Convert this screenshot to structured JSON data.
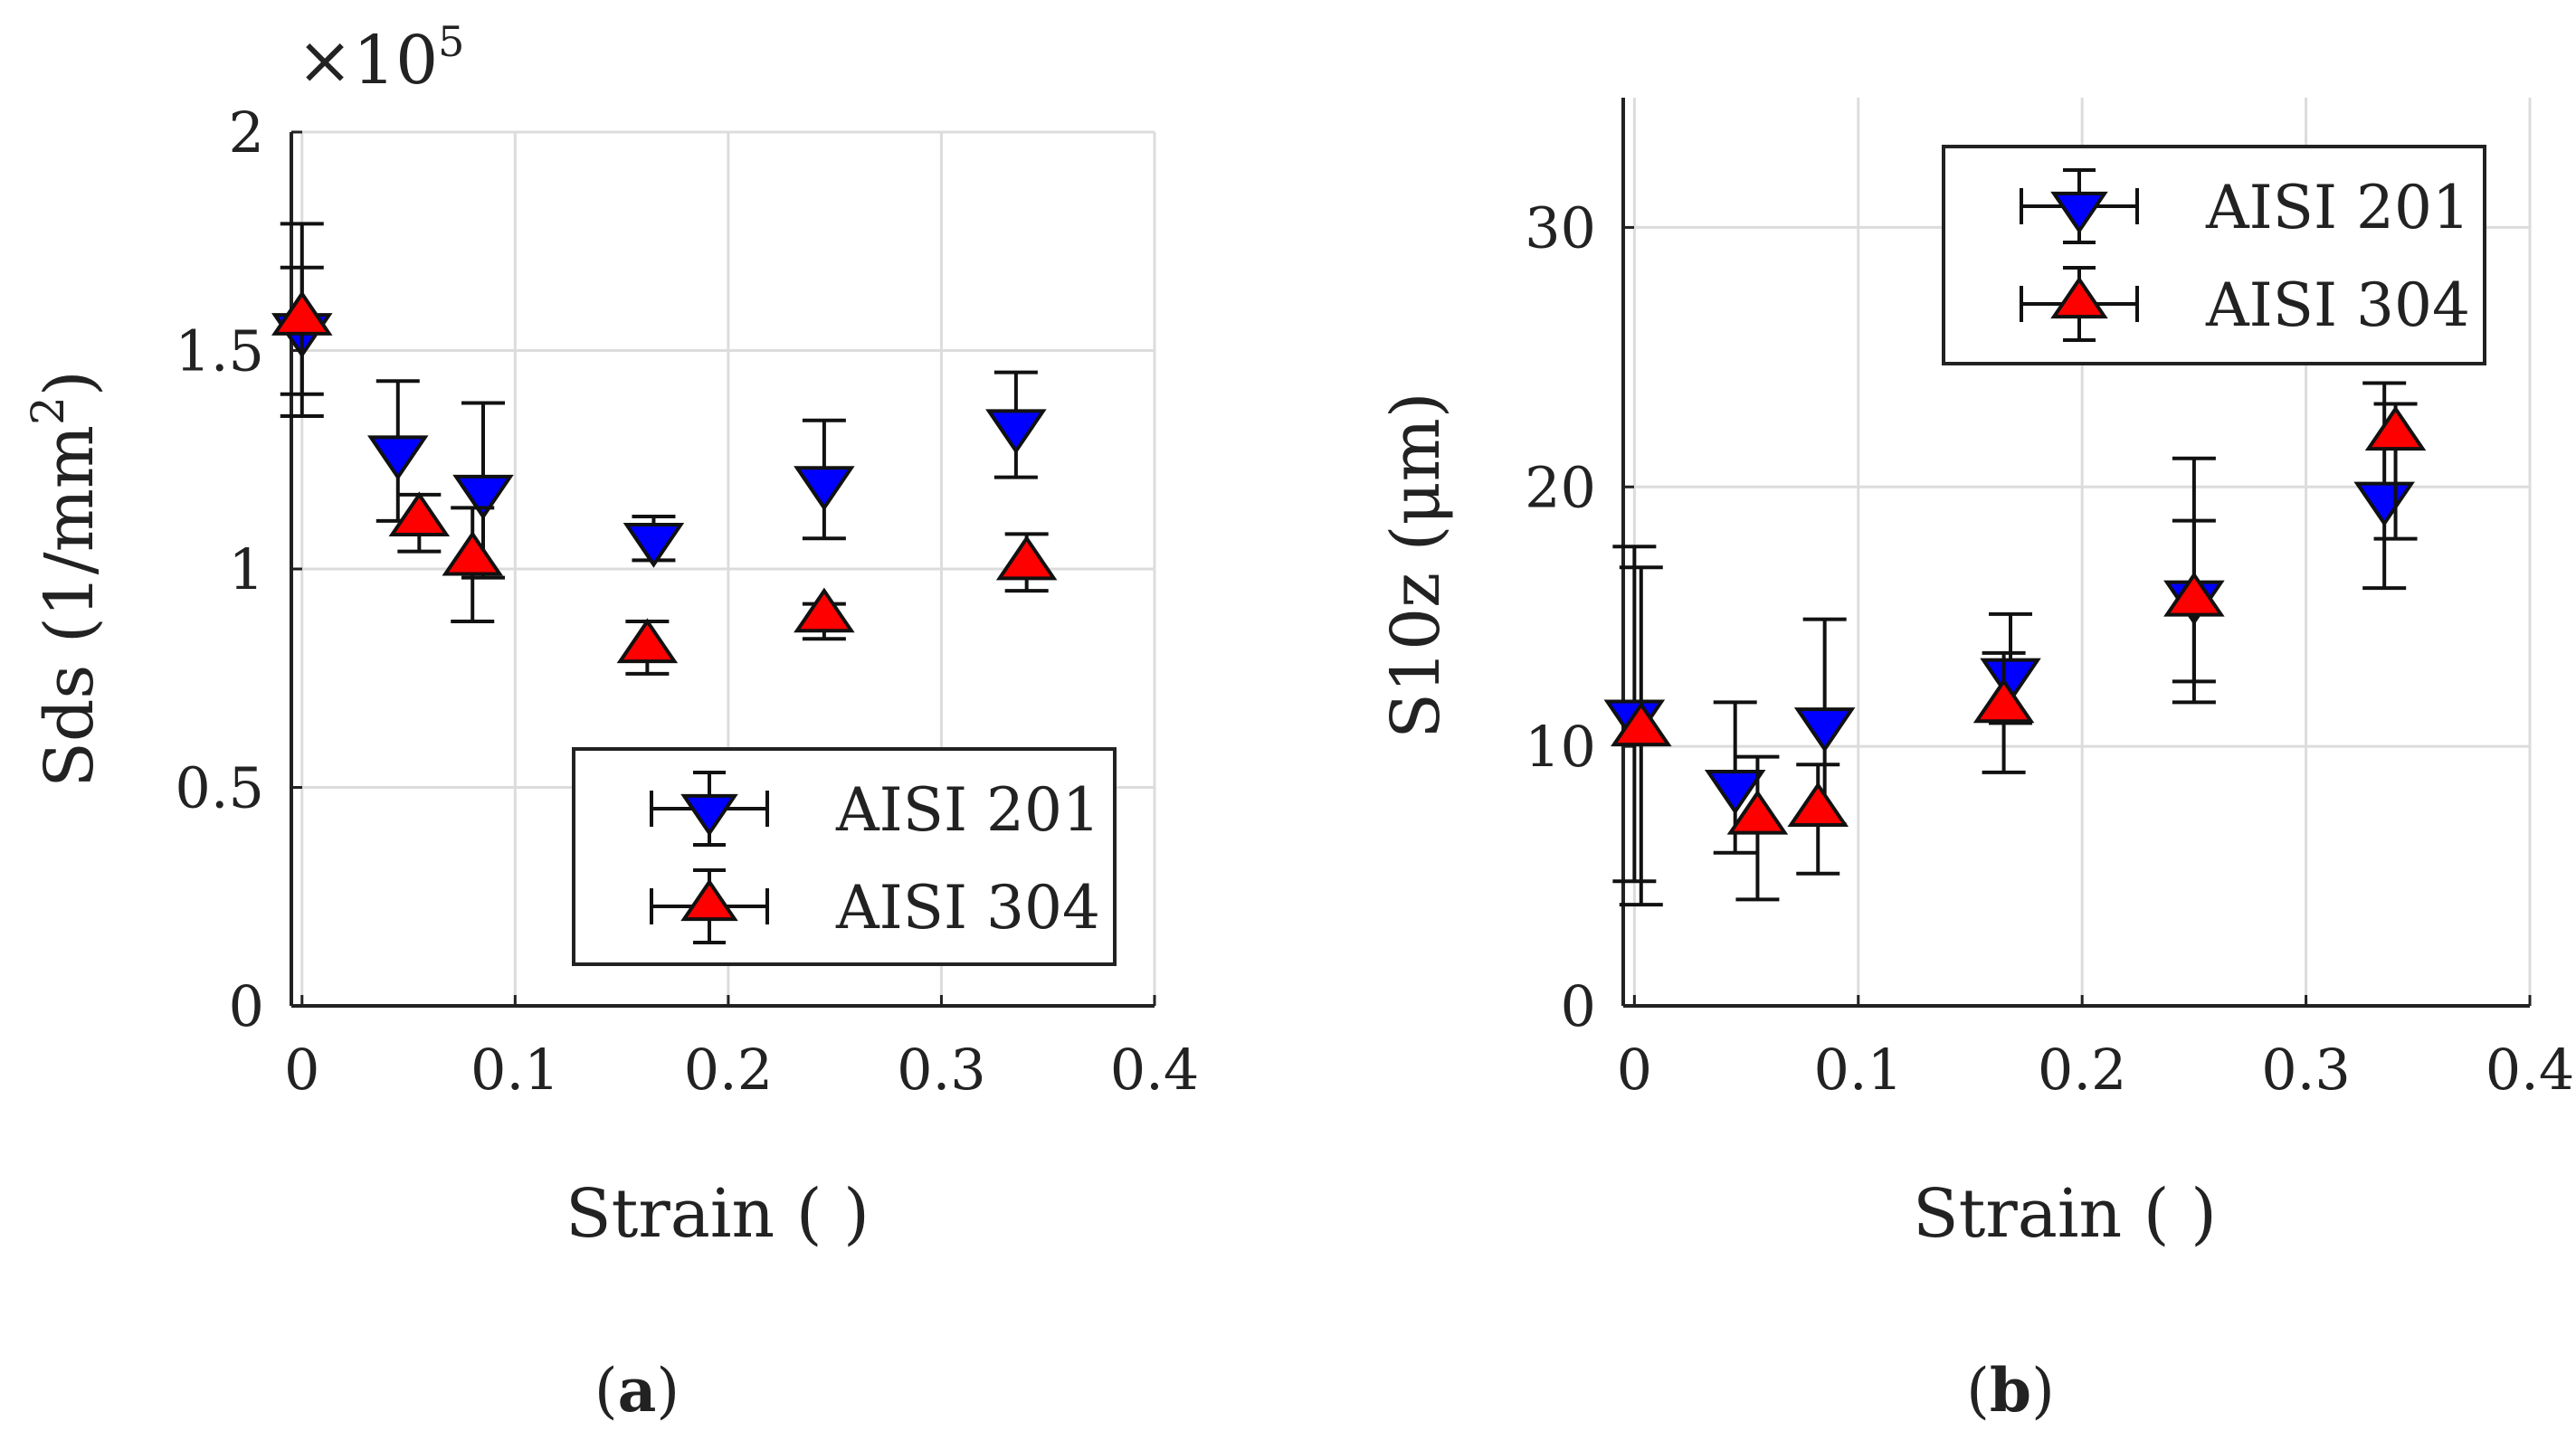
{
  "chart_data": [
    {
      "type": "scatter",
      "panel_label": "a",
      "xlabel": "Strain ( )",
      "ylabel_base": "Sds (1/mm",
      "ylabel_sup": "2",
      "ylabel_close": ")",
      "y_multiplier_base": "×10",
      "y_multiplier_exp": "5",
      "xlim": [
        -0.005,
        0.4
      ],
      "ylim": [
        0,
        2
      ],
      "xticks": [
        0,
        0.1,
        0.2,
        0.3,
        0.4
      ],
      "xtick_labels": [
        "0",
        "0.1",
        "0.2",
        "0.3",
        "0.4"
      ],
      "yticks": [
        0,
        0.5,
        1,
        1.5,
        2
      ],
      "ytick_labels": [
        "0",
        "0.5",
        "1",
        "1.5",
        "2"
      ],
      "grid": true,
      "legend_position": "bottom-right",
      "series": [
        {
          "name": "AISI 201",
          "marker": "triangle-down",
          "color": "#0000ff",
          "x": [
            0,
            0.045,
            0.085,
            0.165,
            0.245,
            0.335
          ],
          "y": [
            1.55,
            1.27,
            1.18,
            1.07,
            1.2,
            1.33
          ],
          "yerr_low": [
            1.35,
            1.11,
            0.98,
            1.02,
            1.07,
            1.21
          ],
          "yerr_high": [
            1.69,
            1.43,
            1.38,
            1.12,
            1.34,
            1.45
          ]
        },
        {
          "name": "AISI 304",
          "marker": "triangle-up",
          "color": "#ff0000",
          "x": [
            0,
            0.055,
            0.08,
            0.162,
            0.245,
            0.34
          ],
          "y": [
            1.57,
            1.11,
            1.02,
            0.82,
            0.89,
            1.01
          ],
          "yerr_low": [
            1.4,
            1.04,
            0.88,
            0.76,
            0.84,
            0.95
          ],
          "yerr_high": [
            1.79,
            1.17,
            1.14,
            0.88,
            0.92,
            1.08
          ]
        }
      ]
    },
    {
      "type": "scatter",
      "panel_label": "b",
      "xlabel": "Strain ( )",
      "ylabel": "S10z (μm)",
      "xlim": [
        -0.005,
        0.4
      ],
      "ylim": [
        0,
        35
      ],
      "xticks": [
        0,
        0.1,
        0.2,
        0.3,
        0.4
      ],
      "xtick_labels": [
        "0",
        "0.1",
        "0.2",
        "0.3",
        "0.4"
      ],
      "yticks": [
        0,
        10,
        20,
        30
      ],
      "ytick_labels": [
        "0",
        "10",
        "20",
        "30"
      ],
      "grid": true,
      "legend_position": "top-right",
      "series": [
        {
          "name": "AISI 201",
          "marker": "triangle-down",
          "color": "#0000ff",
          "x": [
            0,
            0.045,
            0.085,
            0.168,
            0.25,
            0.335
          ],
          "y": [
            11.2,
            8.5,
            10.9,
            12.8,
            15.8,
            19.6
          ],
          "yerr_low": [
            4.8,
            5.9,
            7.0,
            10.9,
            12.5,
            16.1
          ],
          "yerr_high": [
            17.7,
            11.7,
            14.9,
            15.1,
            21.1,
            24.0
          ]
        },
        {
          "name": "AISI 304",
          "marker": "triangle-up",
          "color": "#ff0000",
          "x": [
            0.003,
            0.055,
            0.082,
            0.165,
            0.25,
            0.34
          ],
          "y": [
            10.6,
            7.2,
            7.5,
            11.5,
            15.6,
            22.0
          ],
          "yerr_low": [
            3.9,
            4.1,
            5.1,
            9.0,
            11.7,
            18.0
          ],
          "yerr_high": [
            16.9,
            9.6,
            9.3,
            13.6,
            18.7,
            23.2
          ]
        }
      ]
    }
  ]
}
